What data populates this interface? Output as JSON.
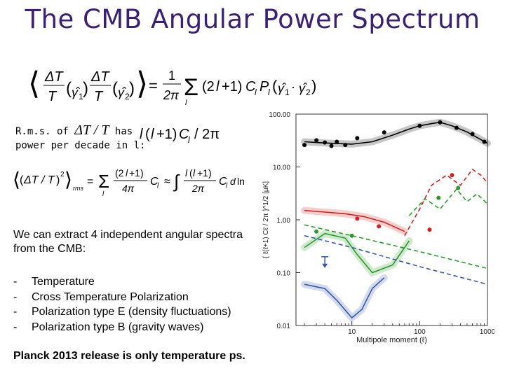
{
  "slide": {
    "title": "The CMB Angular Power Spectrum",
    "rms_line1": "R.m.s. of",
    "rms_symbol": "ΔT / T",
    "rms_has": "has",
    "rms_line2": "power per decade in l:",
    "paragraph": "We can extract 4 independent angular spectra from the CMB:",
    "list": [
      "Temperature",
      "Cross Temperature Polarization",
      "Polarization type E (density fluctuations)",
      "Polarization type B (gravity waves)"
    ],
    "footer": "Planck 2013 release is only temperature ps."
  },
  "equations": {
    "eq1": "⟨ΔT/T(γ̂1) ΔT/T(γ̂2)⟩ = 1/2π Σ (2l+1) Cl Pl(γ̂1·γ̂2)",
    "eq2": "⟨(ΔT/T)²⟩rms = Σ (2l+1)/4π Cl ≈ ∫ l(l+1)/2π Cl d ln l",
    "eq3": "l(l+1) Cl / 2π"
  },
  "chart_data": {
    "type": "line",
    "xlabel": "Multipole moment (ℓ)",
    "ylabel": "{ ℓ(ℓ+1) Cℓ / 2π }^1/2 [μK]",
    "xscale": "log",
    "yscale": "log",
    "xlim": [
      1.5,
      1000
    ],
    "ylim": [
      0.01,
      100
    ],
    "x_ticks": [
      "10",
      "100",
      "1000"
    ],
    "y_ticks": [
      "0.01",
      "0.10",
      "1.00",
      "10.00",
      "100.00"
    ],
    "series": [
      {
        "color": "#000000",
        "style": "solid",
        "x": [
          2,
          3,
          5,
          10,
          20,
          40,
          70,
          100,
          150,
          200,
          300,
          500,
          800,
          1000
        ],
        "y": [
          30,
          29,
          28,
          27,
          30,
          40,
          52,
          60,
          66,
          70,
          60,
          46,
          33,
          28
        ]
      },
      {
        "color": "#d22020",
        "style": "solid",
        "x": [
          2,
          4,
          8,
          15,
          30,
          60
        ],
        "y": [
          1.5,
          1.4,
          1.3,
          1.15,
          0.9,
          0.6
        ]
      },
      {
        "color": "#d22020",
        "style": "dashed",
        "x": [
          60,
          100,
          150,
          250,
          400,
          600,
          800,
          1000
        ],
        "y": [
          0.5,
          1.6,
          4.5,
          7,
          4.5,
          9,
          7,
          5
        ]
      },
      {
        "color": "#2a9a2a",
        "style": "solid",
        "x": [
          2,
          4,
          8,
          12,
          20,
          40,
          70
        ],
        "y": [
          0.3,
          0.55,
          0.45,
          0.22,
          0.1,
          0.14,
          0.4
        ]
      },
      {
        "color": "#2a9a2a",
        "style": "dashed",
        "x": [
          70,
          120,
          200,
          350,
          500,
          700,
          1000
        ],
        "y": [
          1.2,
          2.5,
          1.6,
          3.8,
          2.2,
          3.1,
          2
        ]
      },
      {
        "color": "#2a9a2a",
        "style": "dashed",
        "x": [
          2,
          10,
          100,
          1000
        ],
        "y": [
          0.8,
          0.5,
          0.25,
          0.12
        ]
      },
      {
        "color": "#3355aa",
        "style": "solid",
        "x": [
          2,
          4,
          6,
          10,
          14,
          20,
          30
        ],
        "y": [
          0.06,
          0.05,
          0.03,
          0.014,
          0.02,
          0.05,
          0.08
        ]
      },
      {
        "color": "#3355aa",
        "style": "dashed",
        "x": [
          2,
          10,
          100,
          1000
        ],
        "y": [
          0.5,
          0.3,
          0.13,
          0.06
        ]
      }
    ],
    "points": [
      {
        "color": "#000000",
        "x": [
          2,
          3,
          4,
          5,
          6,
          8,
          12,
          30,
          100,
          200,
          350,
          600,
          900
        ],
        "y": [
          26,
          32,
          29,
          25,
          30,
          26,
          35,
          45,
          60,
          70,
          55,
          42,
          30
        ]
      },
      {
        "color": "#d22020",
        "x": [
          12,
          25,
          140,
          300
        ],
        "y": [
          1.05,
          0.75,
          0.65,
          7
        ]
      },
      {
        "color": "#2a9a2a",
        "x": [
          3,
          10,
          190,
          370
        ],
        "y": [
          0.6,
          0.5,
          2.6,
          4
        ]
      }
    ],
    "upper_limit": {
      "color": "#3355aa",
      "x": 4,
      "y": 0.2
    }
  }
}
